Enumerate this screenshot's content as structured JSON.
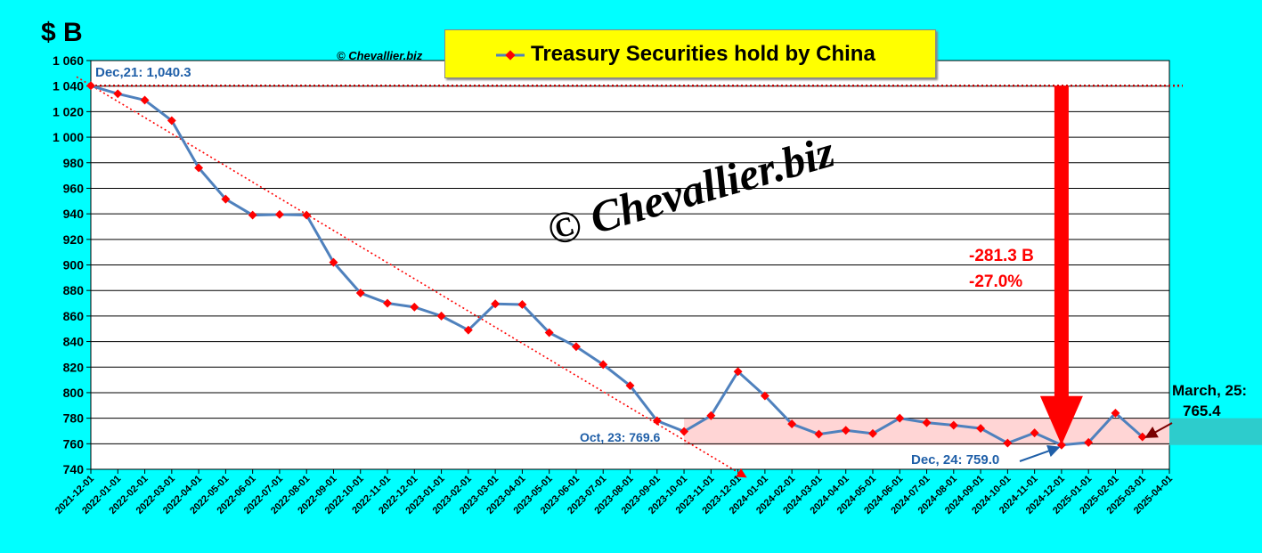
{
  "header": {
    "unit_label": "$ B",
    "copyright_small": "© Chevallier.biz",
    "watermark": "© Chevallier.biz"
  },
  "legend": {
    "series_label": "Treasury Securities hold by China"
  },
  "annotations": {
    "start": "Dec,21: 1,040.3",
    "oct23": "Oct, 23: 769.6",
    "dec24": "Dec, 24: 759.0",
    "drop_b": "-281.3 B",
    "drop_pct": "-27.0%",
    "march25_line1": "March, 25:",
    "march25_line2": "765.4"
  },
  "colors": {
    "background": "#00FFFF",
    "plot_bg": "#FFFFFF",
    "series_line": "#4F81BD",
    "marker": "#FF0000",
    "band": "#FFD5D5",
    "big_arrow": "#FF0000",
    "annotation_blue": "#1F5FA8"
  },
  "chart_data": {
    "type": "line",
    "ylim": [
      740,
      1060
    ],
    "yticks": [
      740,
      760,
      780,
      800,
      820,
      840,
      860,
      880,
      900,
      920,
      940,
      960,
      980,
      1000,
      1020,
      1040,
      1060
    ],
    "ytick_labels": [
      "740",
      "760",
      "780",
      "800",
      "820",
      "840",
      "860",
      "880",
      "900",
      "920",
      "940",
      "960",
      "980",
      "1 000",
      "1 020",
      "1 040",
      "1 060"
    ],
    "grid": "horizontal",
    "categories": [
      "2021-12-01",
      "2022-01-01",
      "2022-02-01",
      "2022-03-01",
      "2022-04-01",
      "2022-05-01",
      "2022-06-01",
      "2022-07-01",
      "2022-08-01",
      "2022-09-01",
      "2022-10-01",
      "2022-11-01",
      "2022-12-01",
      "2023-01-01",
      "2023-02-01",
      "2023-03-01",
      "2023-04-01",
      "2023-05-01",
      "2023-06-01",
      "2023-07-01",
      "2023-08-01",
      "2023-09-01",
      "2023-10-01",
      "2023-11-01",
      "2023-12-01",
      "2024-01-01",
      "2024-02-01",
      "2024-03-01",
      "2024-04-01",
      "2024-05-01",
      "2024-06-01",
      "2024-07-01",
      "2024-08-01",
      "2024-09-01",
      "2024-10-01",
      "2024-11-01",
      "2024-12-01",
      "2025-01-01",
      "2025-02-01",
      "2025-03-01",
      "2025-04-01"
    ],
    "series": [
      {
        "name": "Treasury Securities hold by China",
        "values": [
          1040.3,
          1034,
          1029,
          1013,
          976,
          951.5,
          939,
          939.5,
          939,
          902,
          878,
          870,
          867,
          860,
          849,
          869.5,
          869,
          847,
          836,
          822,
          805.5,
          778,
          769.6,
          782,
          816.5,
          797.5,
          775.5,
          767.5,
          770.5,
          768,
          780,
          776.5,
          774.5,
          772,
          760.5,
          768.5,
          759.0,
          761,
          784,
          765.4,
          null
        ]
      }
    ],
    "reference_line": {
      "value": 1040.3,
      "style": "dotted",
      "color": "#C00000"
    },
    "trend_line": {
      "from": [
        "2021-12-01",
        1040.3
      ],
      "to": [
        "2024-01-01",
        748
      ],
      "style": "dotted",
      "color": "#FF0000"
    },
    "band": {
      "ymin": 759.0,
      "ymax": 780,
      "from": "2023-10-01"
    }
  }
}
